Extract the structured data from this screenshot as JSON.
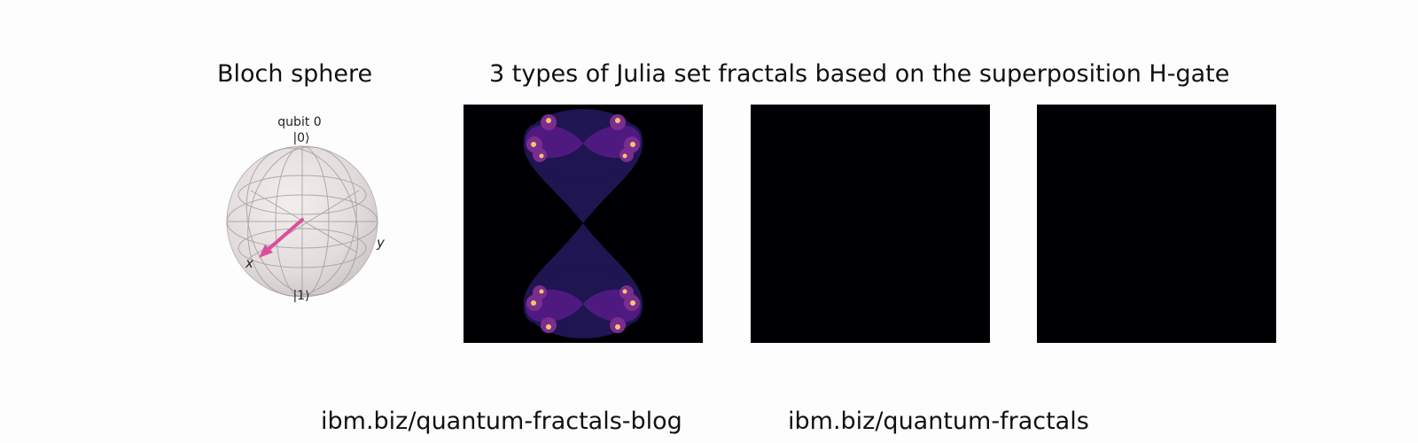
{
  "bloch": {
    "title": "Bloch sphere",
    "qubit_label": "qubit 0",
    "ket0": "|0⟩",
    "ket1": "|1⟩",
    "x_label": "x",
    "y_label": "y",
    "vector_color": "#dc4e9b"
  },
  "julia": {
    "title": "3 types of Julia set fractals based on the superposition H-gate",
    "panels": [
      {
        "fill": "fractal",
        "background": "#000004"
      },
      {
        "fill": "empty",
        "background": "#000004"
      },
      {
        "fill": "empty",
        "background": "#000004"
      }
    ],
    "colors": {
      "outer": "#1f1550",
      "inner": "#4e1a80",
      "lobe": "#7b2d8e",
      "hot": "#f9c46c"
    }
  },
  "links": {
    "blog": "ibm.biz/quantum-fractals-blog",
    "repo": "ibm.biz/quantum-fractals"
  }
}
